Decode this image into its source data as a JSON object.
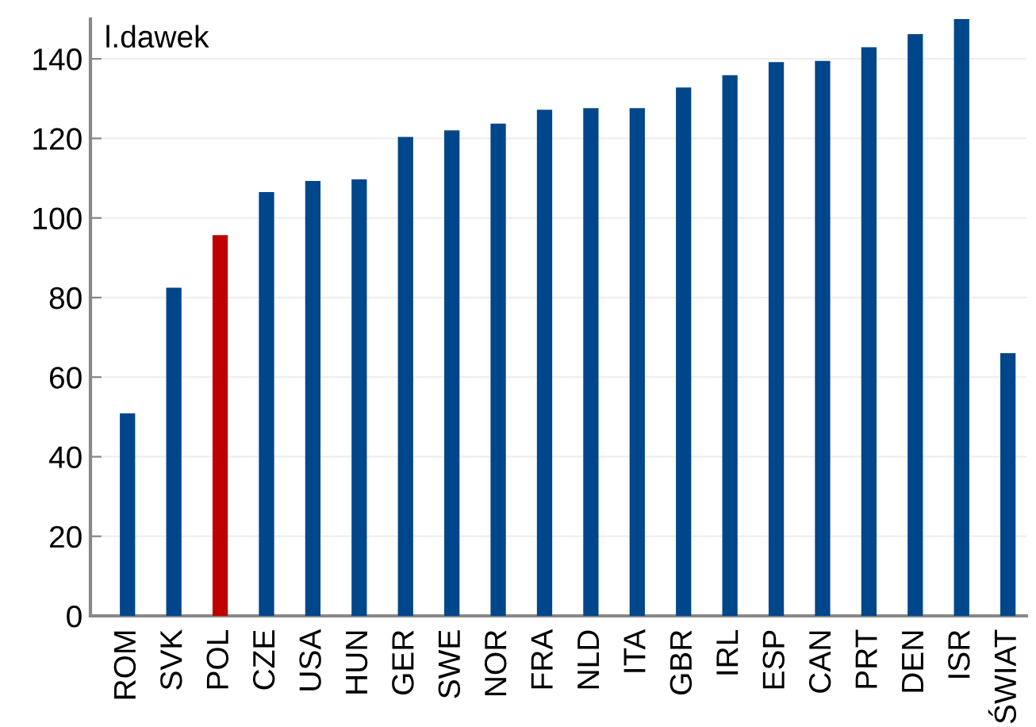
{
  "chart_data": {
    "type": "bar",
    "ylabel": "l.dawek",
    "categories": [
      "ROM",
      "SVK",
      "POL",
      "CZE",
      "USA",
      "HUN",
      "GER",
      "SWE",
      "NOR",
      "FRA",
      "NLD",
      "ITA",
      "GBR",
      "IRL",
      "ESP",
      "CAN",
      "PRT",
      "DEN",
      "ISR",
      "ŚWIAT"
    ],
    "values": [
      50.9,
      82.5,
      95.7,
      106.5,
      109.3,
      109.7,
      120.4,
      122.0,
      123.7,
      127.2,
      127.6,
      127.6,
      132.8,
      135.9,
      139.2,
      139.5,
      142.9,
      146.2,
      150,
      66.0
    ],
    "colors": [
      "#00468b",
      "#00468b",
      "#c00000",
      "#00468b",
      "#00468b",
      "#00468b",
      "#00468b",
      "#00468b",
      "#00468b",
      "#00468b",
      "#00468b",
      "#00468b",
      "#00468b",
      "#00468b",
      "#00468b",
      "#00468b",
      "#00468b",
      "#00468b",
      "#00468b",
      "#00468b"
    ],
    "ylim": [
      0,
      150
    ],
    "yticks": [
      0,
      20,
      40,
      60,
      80,
      100,
      120,
      140
    ],
    "grid": "y"
  }
}
